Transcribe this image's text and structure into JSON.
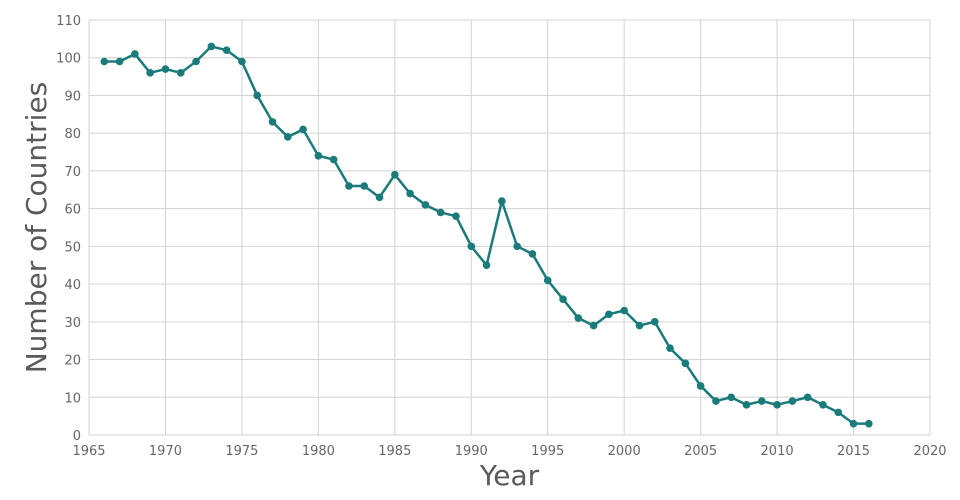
{
  "chart_data": {
    "type": "line",
    "xlabel": "Year",
    "ylabel": "Number of Countries",
    "xlim": [
      1965,
      2020
    ],
    "ylim": [
      0,
      110
    ],
    "xticks": [
      1965,
      1970,
      1975,
      1980,
      1985,
      1990,
      1995,
      2000,
      2005,
      2010,
      2015,
      2020
    ],
    "yticks": [
      0,
      10,
      20,
      30,
      40,
      50,
      60,
      70,
      80,
      90,
      100,
      110
    ],
    "grid": true,
    "series": [
      {
        "color": "#1b7a7a",
        "x": [
          1966,
          1967,
          1968,
          1969,
          1970,
          1971,
          1972,
          1973,
          1974,
          1975,
          1976,
          1977,
          1978,
          1979,
          1980,
          1981,
          1982,
          1983,
          1984,
          1985,
          1986,
          1987,
          1988,
          1989,
          1990,
          1991,
          1992,
          1993,
          1994,
          1995,
          1996,
          1997,
          1998,
          1999,
          2000,
          2001,
          2002,
          2003,
          2004,
          2005,
          2006,
          2007,
          2008,
          2009,
          2010,
          2011,
          2012,
          2013,
          2014,
          2015,
          2016
        ],
        "y": [
          99,
          99,
          101,
          96,
          97,
          96,
          99,
          103,
          102,
          99,
          90,
          83,
          79,
          81,
          74,
          73,
          66,
          66,
          63,
          69,
          64,
          61,
          59,
          58,
          50,
          45,
          62,
          50,
          48,
          41,
          36,
          31,
          29,
          32,
          33,
          29,
          30,
          23,
          19,
          13,
          9,
          10,
          8,
          9,
          8,
          9,
          10,
          8,
          6,
          3,
          3
        ]
      }
    ]
  }
}
